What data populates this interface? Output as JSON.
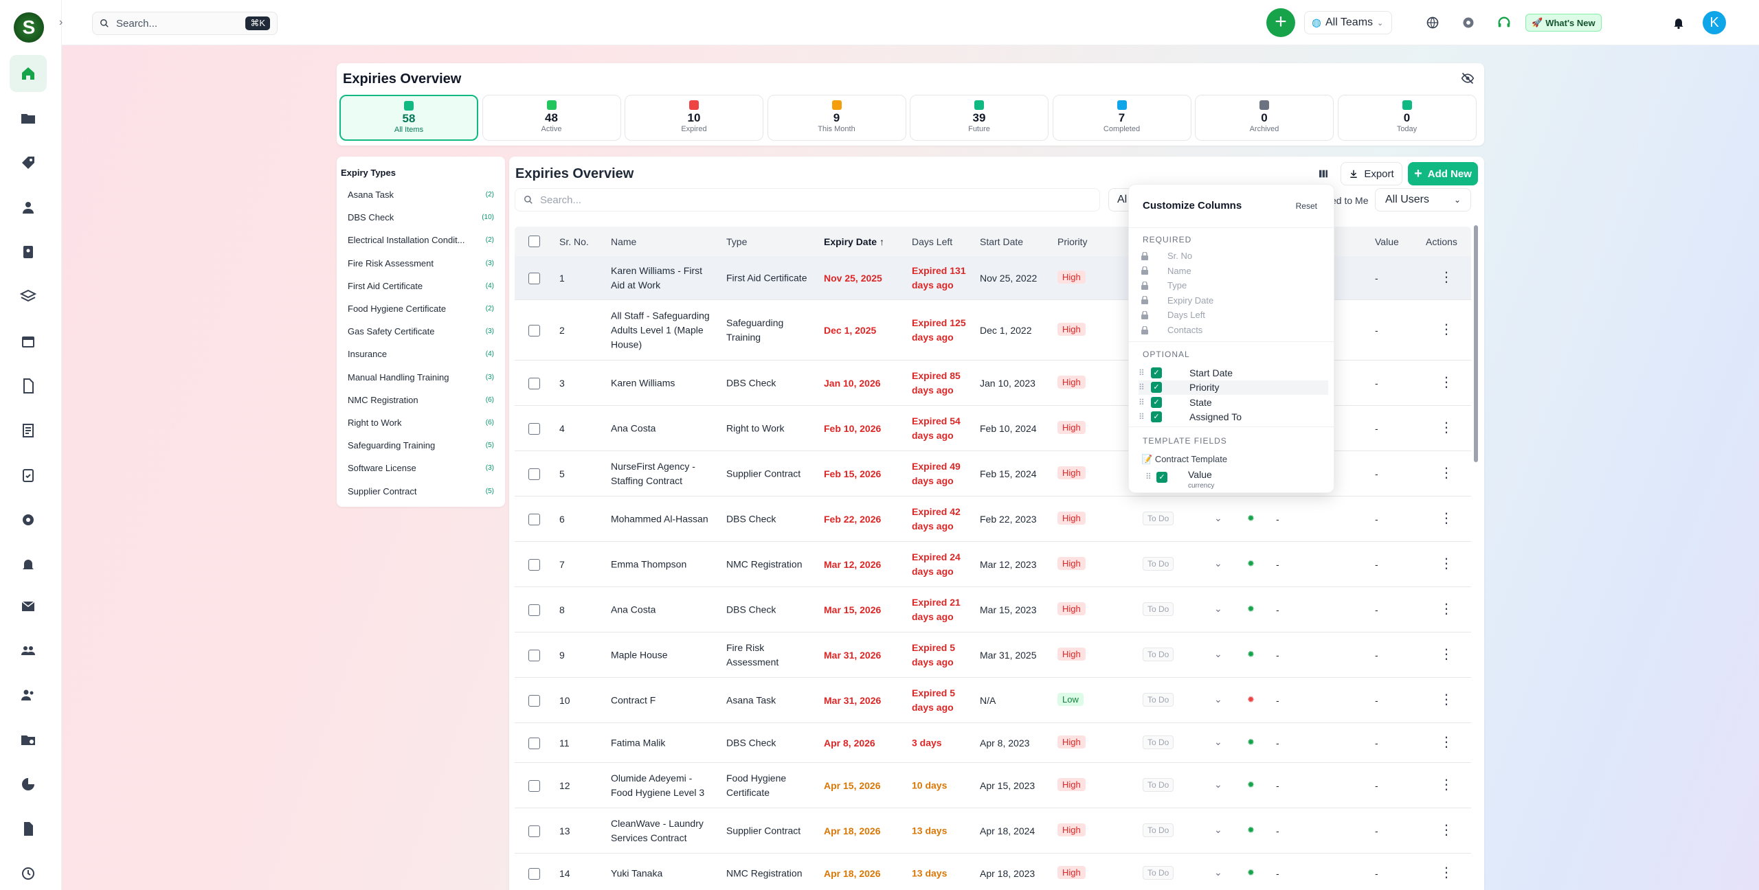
{
  "topbar": {
    "search_placeholder": "Search...",
    "shortcut": "⌘K",
    "teams": "All Teams",
    "whats_new": "What's New",
    "avatar": "K"
  },
  "overview": {
    "title": "Expiries Overview",
    "stats": [
      {
        "value": "58",
        "label": "All Items",
        "color": "#10b981"
      },
      {
        "value": "48",
        "label": "Active",
        "color": "#22c55e"
      },
      {
        "value": "10",
        "label": "Expired",
        "color": "#ef4444"
      },
      {
        "value": "9",
        "label": "This Month",
        "color": "#f59e0b"
      },
      {
        "value": "39",
        "label": "Future",
        "color": "#10b981"
      },
      {
        "value": "7",
        "label": "Completed",
        "color": "#0ea5e9"
      },
      {
        "value": "0",
        "label": "Archived",
        "color": "#6b7280"
      },
      {
        "value": "0",
        "label": "Today",
        "color": "#10b981"
      }
    ]
  },
  "expiry_types": {
    "title": "Expiry Types",
    "items": [
      {
        "label": "Asana Task",
        "count": "(2)"
      },
      {
        "label": "DBS Check",
        "count": "(10)"
      },
      {
        "label": "Electrical Installation Condit...",
        "count": "(2)"
      },
      {
        "label": "Fire Risk Assessment",
        "count": "(3)"
      },
      {
        "label": "First Aid Certificate",
        "count": "(4)"
      },
      {
        "label": "Food Hygiene Certificate",
        "count": "(2)"
      },
      {
        "label": "Gas Safety Certificate",
        "count": "(3)"
      },
      {
        "label": "Insurance",
        "count": "(4)"
      },
      {
        "label": "Manual Handling Training",
        "count": "(3)"
      },
      {
        "label": "NMC Registration",
        "count": "(6)"
      },
      {
        "label": "Right to Work",
        "count": "(6)"
      },
      {
        "label": "Safeguarding Training",
        "count": "(5)"
      },
      {
        "label": "Software License",
        "count": "(3)"
      },
      {
        "label": "Supplier Contract",
        "count": "(5)"
      }
    ]
  },
  "main": {
    "title": "Expiries Overview",
    "export": "Export",
    "add_new": "Add New",
    "search_placeholder": "Search...",
    "filter_cut": "Al",
    "assigned_cut": "ed to Me",
    "users": "All Users"
  },
  "columns": {
    "sr": "Sr. No.",
    "name": "Name",
    "type": "Type",
    "expiry": "Expiry Date",
    "days": "Days Left",
    "start": "Start Date",
    "priority": "Priority",
    "value": "Value",
    "actions": "Actions"
  },
  "rows": [
    {
      "sr": "1",
      "name": "Karen Williams - First Aid at Work",
      "type": "First Aid Certificate",
      "expiry": "Nov 25, 2025",
      "days": "Expired 131 days ago",
      "start": "Nov 25, 2022",
      "priority": "High",
      "state": "",
      "value": "-",
      "s": "exp"
    },
    {
      "sr": "2",
      "name": "All Staff - Safeguarding Adults Level 1 (Maple House)",
      "type": "Safeguarding Training",
      "expiry": "Dec 1, 2025",
      "days": "Expired 125 days ago",
      "start": "Dec 1, 2022",
      "priority": "High",
      "state": "",
      "value": "-",
      "s": "exp"
    },
    {
      "sr": "3",
      "name": "Karen Williams",
      "type": "DBS Check",
      "expiry": "Jan 10, 2026",
      "days": "Expired 85 days ago",
      "start": "Jan 10, 2023",
      "priority": "High",
      "state": "",
      "value": "-",
      "s": "exp"
    },
    {
      "sr": "4",
      "name": "Ana Costa",
      "type": "Right to Work",
      "expiry": "Feb 10, 2026",
      "days": "Expired 54 days ago",
      "start": "Feb 10, 2024",
      "priority": "High",
      "state": "",
      "value": "-",
      "s": "exp"
    },
    {
      "sr": "5",
      "name": "NurseFirst Agency - Staffing Contract",
      "type": "Supplier Contract",
      "expiry": "Feb 15, 2026",
      "days": "Expired 49 days ago",
      "start": "Feb 15, 2024",
      "priority": "High",
      "state": "",
      "value": "-",
      "s": "exp"
    },
    {
      "sr": "6",
      "name": "Mohammed Al-Hassan",
      "type": "DBS Check",
      "expiry": "Feb 22, 2026",
      "days": "Expired 42 days ago",
      "start": "Feb 22, 2023",
      "priority": "High",
      "state": "To Do",
      "value": "-",
      "s": "exp"
    },
    {
      "sr": "7",
      "name": "Emma Thompson",
      "type": "NMC Registration",
      "expiry": "Mar 12, 2026",
      "days": "Expired 24 days ago",
      "start": "Mar 12, 2023",
      "priority": "High",
      "state": "To Do",
      "value": "-",
      "s": "exp"
    },
    {
      "sr": "8",
      "name": "Ana Costa",
      "type": "DBS Check",
      "expiry": "Mar 15, 2026",
      "days": "Expired 21 days ago",
      "start": "Mar 15, 2023",
      "priority": "High",
      "state": "To Do",
      "value": "-",
      "s": "exp"
    },
    {
      "sr": "9",
      "name": "Maple House",
      "type": "Fire Risk Assessment",
      "expiry": "Mar 31, 2026",
      "days": "Expired 5 days ago",
      "start": "Mar 31, 2025",
      "priority": "High",
      "state": "To Do",
      "value": "-",
      "s": "exp"
    },
    {
      "sr": "10",
      "name": "Contract F",
      "type": "Asana Task",
      "expiry": "Mar 31, 2026",
      "days": "Expired 5 days ago",
      "start": "N/A",
      "priority": "Low",
      "state": "To Do",
      "value": "-",
      "s": "exp"
    },
    {
      "sr": "11",
      "name": "Fatima Malik",
      "type": "DBS Check",
      "expiry": "Apr 8, 2026",
      "days": "3 days",
      "start": "Apr 8, 2023",
      "priority": "High",
      "state": "To Do",
      "value": "-",
      "s": "exp"
    },
    {
      "sr": "12",
      "name": "Olumide Adeyemi - Food Hygiene Level 3",
      "type": "Food Hygiene Certificate",
      "expiry": "Apr 15, 2026",
      "days": "10 days",
      "start": "Apr 15, 2023",
      "priority": "High",
      "state": "To Do",
      "value": "-",
      "s": "soon"
    },
    {
      "sr": "13",
      "name": "CleanWave - Laundry Services Contract",
      "type": "Supplier Contract",
      "expiry": "Apr 18, 2026",
      "days": "13 days",
      "start": "Apr 18, 2024",
      "priority": "High",
      "state": "To Do",
      "value": "-",
      "s": "soon"
    },
    {
      "sr": "14",
      "name": "Yuki Tanaka",
      "type": "NMC Registration",
      "expiry": "Apr 18, 2026",
      "days": "13 days",
      "start": "Apr 18, 2023",
      "priority": "High",
      "state": "To Do",
      "value": "-",
      "s": "soon"
    }
  ],
  "customize": {
    "title": "Customize Columns",
    "reset": "Reset",
    "required_label": "REQUIRED",
    "required": [
      "Sr. No",
      "Name",
      "Type",
      "Expiry Date",
      "Days Left",
      "Contacts"
    ],
    "optional_label": "OPTIONAL",
    "optional": [
      "Start Date",
      "Priority",
      "State",
      "Assigned To"
    ],
    "template_label": "TEMPLATE FIELDS",
    "template_name": "Contract Template",
    "template_field": "Value",
    "template_field_type": "currency"
  }
}
